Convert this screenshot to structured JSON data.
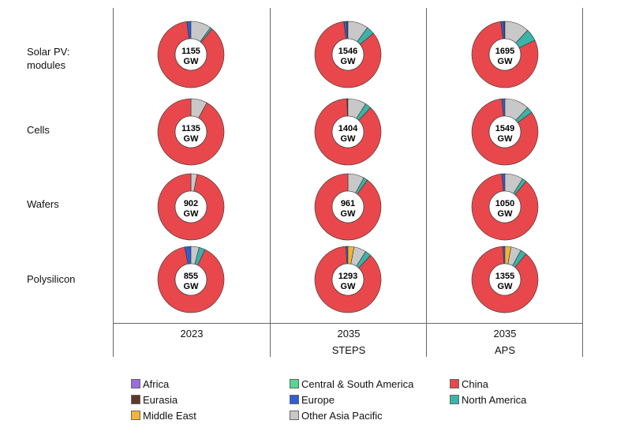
{
  "row_labels": [
    "Solar PV:\nmodules",
    "Cells",
    "Wafers",
    "Polysilicon"
  ],
  "col_labels": [
    {
      "year": "2023",
      "scenario": ""
    },
    {
      "year": "2035",
      "scenario": "STEPS"
    },
    {
      "year": "2035",
      "scenario": "APS"
    }
  ],
  "legend": [
    {
      "name": "Africa",
      "color": "#9b6be0"
    },
    {
      "name": "Central & South America",
      "color": "#57d68f"
    },
    {
      "name": "China",
      "color": "#e8484b"
    },
    {
      "name": "Eurasia",
      "color": "#5b3a29"
    },
    {
      "name": "Europe",
      "color": "#2f5fd0"
    },
    {
      "name": "North America",
      "color": "#3bb3a8"
    },
    {
      "name": "Middle East",
      "color": "#f2b437"
    },
    {
      "name": "Other Asia Pacific",
      "color": "#c8c8c8"
    }
  ],
  "chart_data": {
    "type": "pie",
    "rows": [
      "Solar PV: modules",
      "Cells",
      "Wafers",
      "Polysilicon"
    ],
    "columns": [
      "2023",
      "2035 STEPS",
      "2035 APS"
    ],
    "series_order": [
      "Africa",
      "Central & South America",
      "China",
      "Eurasia",
      "Europe",
      "North America",
      "Middle East",
      "Other Asia Pacific"
    ],
    "unit": "GW",
    "donuts": [
      [
        {
          "total": "1155",
          "shares": {
            "Europe": 0.02,
            "Other Asia Pacific": 0.1,
            "North America": 0.01,
            "China": 0.87
          }
        },
        {
          "total": "1546",
          "shares": {
            "Eurasia": 0.005,
            "Europe": 0.015,
            "Other Asia Pacific": 0.1,
            "North America": 0.04,
            "China": 0.84
          }
        },
        {
          "total": "1695",
          "shares": {
            "Eurasia": 0.005,
            "Europe": 0.015,
            "Other Asia Pacific": 0.12,
            "North America": 0.06,
            "China": 0.8
          }
        }
      ],
      [
        {
          "total": "1135",
          "shares": {
            "Other Asia Pacific": 0.08,
            "China": 0.92
          }
        },
        {
          "total": "1404",
          "shares": {
            "Eurasia": 0.005,
            "Other Asia Pacific": 0.09,
            "North America": 0.03,
            "China": 0.875
          }
        },
        {
          "total": "1549",
          "shares": {
            "Europe": 0.015,
            "Other Asia Pacific": 0.12,
            "North America": 0.03,
            "China": 0.835
          }
        }
      ],
      [
        {
          "total": "902",
          "shares": {
            "Other Asia Pacific": 0.03,
            "China": 0.97
          }
        },
        {
          "total": "961",
          "shares": {
            "Other Asia Pacific": 0.08,
            "North America": 0.02,
            "China": 0.9
          }
        },
        {
          "total": "1050",
          "shares": {
            "Europe": 0.015,
            "Other Asia Pacific": 0.09,
            "North America": 0.02,
            "China": 0.875
          }
        }
      ],
      [
        {
          "total": "855",
          "shares": {
            "Europe": 0.03,
            "North America": 0.03,
            "Other Asia Pacific": 0.04,
            "China": 0.9
          }
        },
        {
          "total": "1293",
          "shares": {
            "Europe": 0.01,
            "Middle East": 0.03,
            "Other Asia Pacific": 0.06,
            "North America": 0.03,
            "China": 0.87
          }
        },
        {
          "total": "1355",
          "shares": {
            "Europe": 0.01,
            "Middle East": 0.03,
            "Other Asia Pacific": 0.05,
            "North America": 0.03,
            "China": 0.88
          }
        }
      ]
    ]
  }
}
